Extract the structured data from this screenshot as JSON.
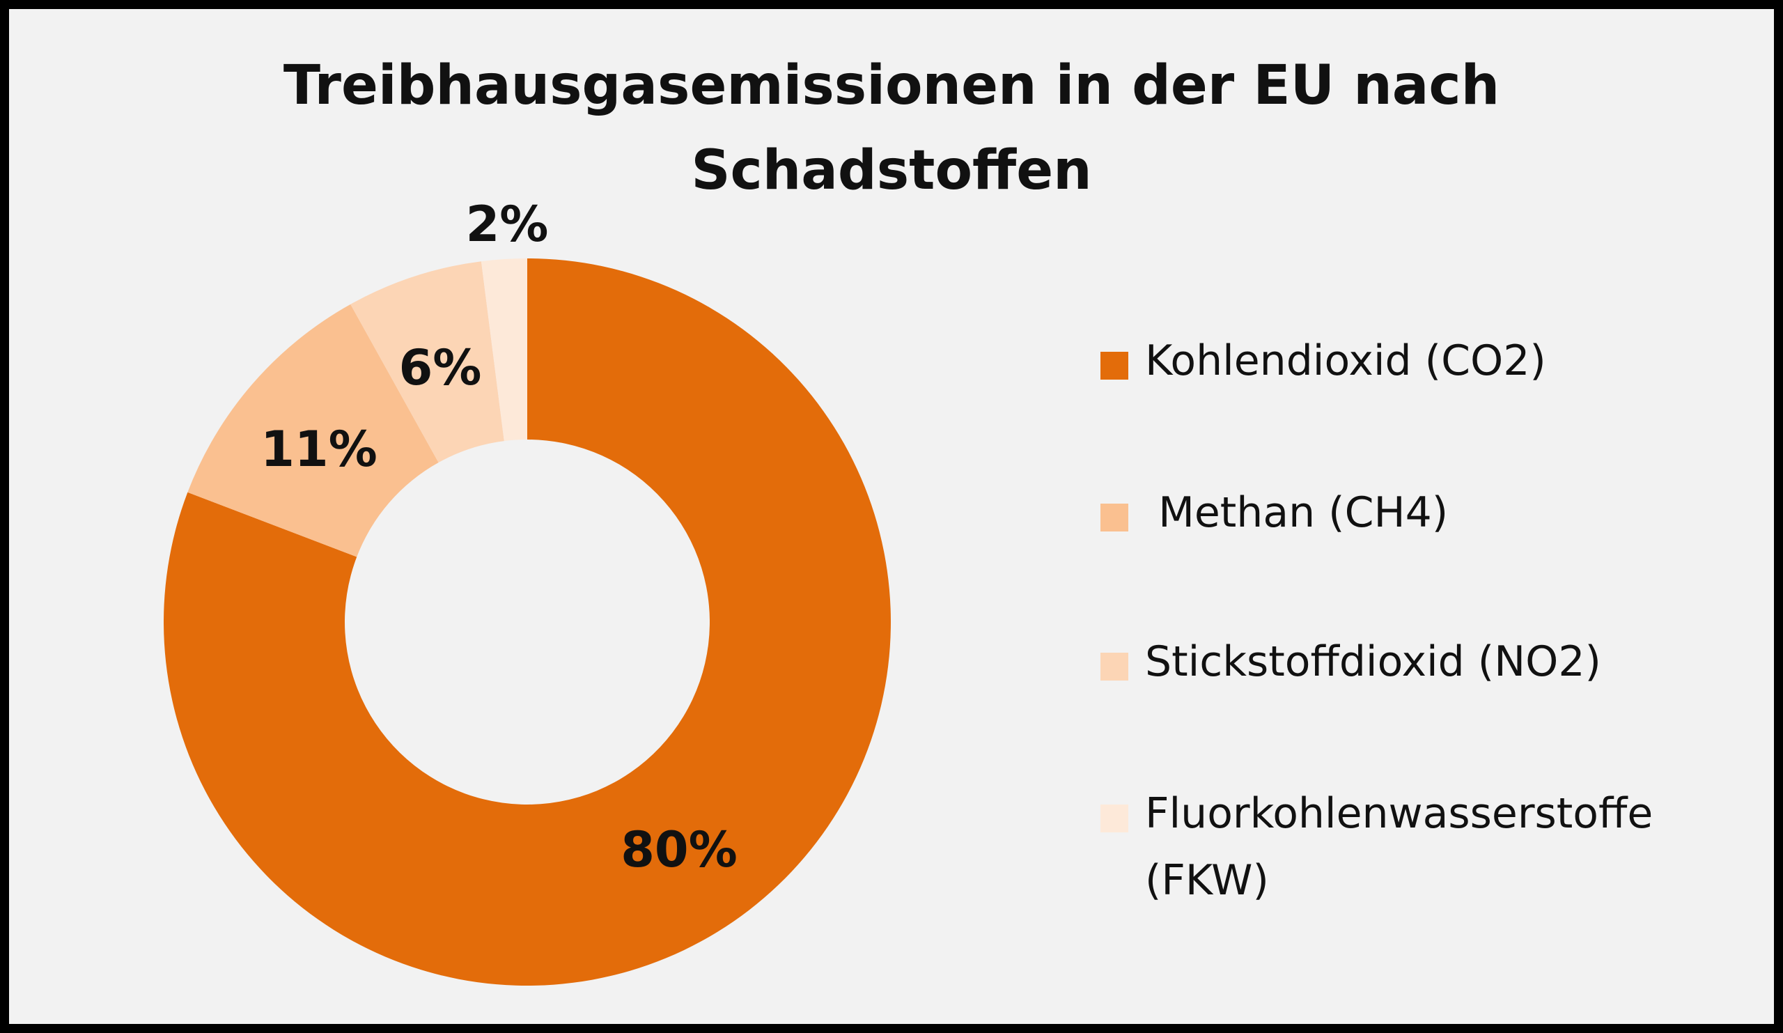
{
  "chart_data": {
    "type": "pie",
    "subtype": "donut",
    "title_lines": [
      "Treibhausgasemissionen  in der EU nach",
      "Schadstoffen"
    ],
    "categories": [
      "Kohlendioxid (CO2)",
      " Methan (CH4)",
      "Stickstoffdioxid (NO2)",
      "Fluorkohlenwasserstoffe (FKW)"
    ],
    "values": [
      80,
      11,
      6,
      2
    ],
    "data_labels": [
      "80%",
      "11%",
      "6%",
      "2%"
    ],
    "colors": [
      "#e36c0a",
      "#fac090",
      "#fcd5b5",
      "#fde9d9"
    ],
    "legend_position": "right"
  },
  "legend": [
    {
      "label": "Kohlendioxid (CO2)",
      "color": "#e36c0a"
    },
    {
      "label": " Methan (CH4)",
      "color": "#fac090"
    },
    {
      "label": "Stickstoffdioxid (NO2)",
      "color": "#fcd5b5"
    },
    {
      "label": "Fluorkohlenwasserstoffe\n(FKW)",
      "color": "#fde9d9"
    }
  ],
  "colors": {
    "background": "#f2f2f2",
    "border": "#000000",
    "text": "#111111"
  }
}
